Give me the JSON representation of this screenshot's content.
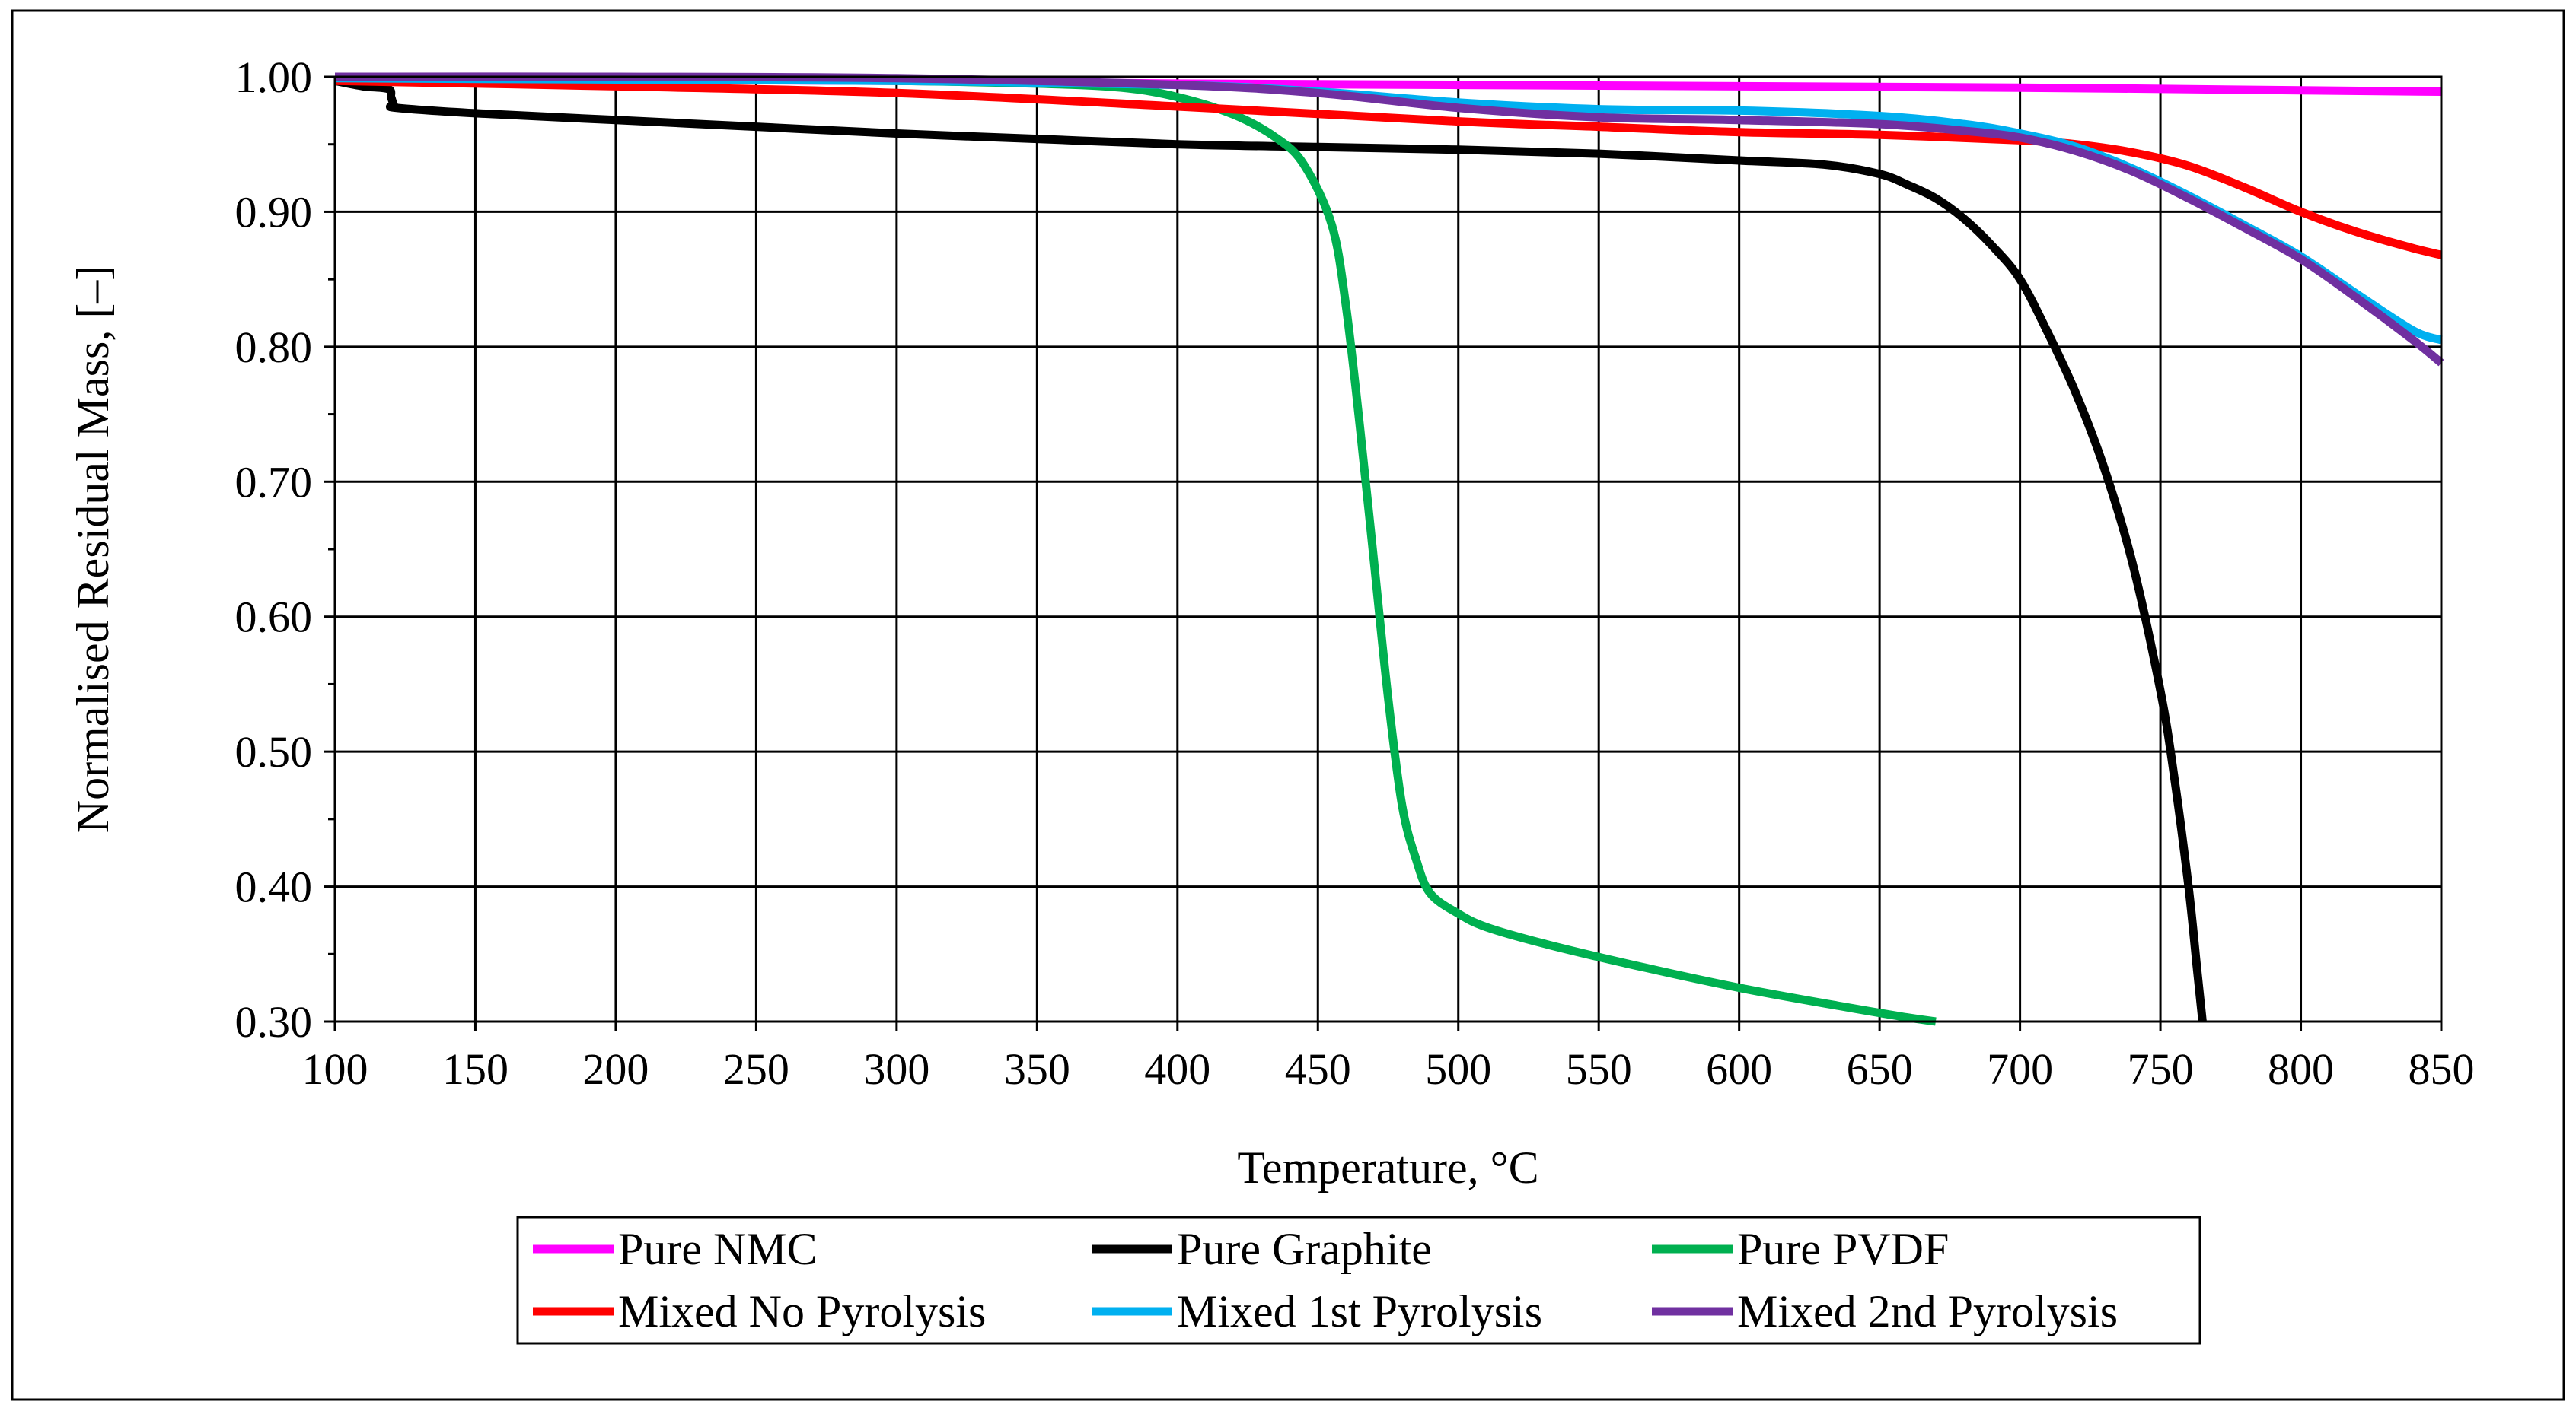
{
  "chart_data": {
    "type": "line",
    "title": "",
    "xlabel": "Temperature, °C",
    "ylabel": "Normalised  Residual Mass, [–]",
    "xlim": [
      100,
      850
    ],
    "ylim": [
      0.3,
      1.0
    ],
    "x_ticks": [
      100,
      150,
      200,
      250,
      300,
      350,
      400,
      450,
      500,
      550,
      600,
      650,
      700,
      750,
      800,
      850
    ],
    "x_tick_labels": [
      "100",
      "150",
      "200",
      "250",
      "300",
      "350",
      "400",
      "450",
      "500",
      "550",
      "600",
      "650",
      "700",
      "750",
      "800",
      "850"
    ],
    "y_ticks": [
      0.3,
      0.4,
      0.5,
      0.6,
      0.7,
      0.8,
      0.9,
      1.0
    ],
    "y_tick_labels": [
      "0.30",
      "0.40",
      "0.50",
      "0.60",
      "0.70",
      "0.80",
      "0.90",
      "1.00"
    ],
    "grid": true,
    "legend_position": "bottom",
    "series": [
      {
        "name": "Pure NMC",
        "color": "#FF00FF",
        "x": [
          100,
          200,
          300,
          400,
          500,
          600,
          700,
          800,
          850
        ],
        "y": [
          0.999,
          0.998,
          0.997,
          0.995,
          0.994,
          0.993,
          0.992,
          0.99,
          0.989
        ]
      },
      {
        "name": "Pure Graphite",
        "color": "#000000",
        "x": [
          100,
          110,
          119,
          120,
          121,
          122,
          150,
          200,
          250,
          300,
          350,
          400,
          450,
          500,
          550,
          600,
          630,
          650,
          660,
          670,
          680,
          690,
          700,
          710,
          720,
          730,
          740,
          750,
          755,
          760,
          763,
          765
        ],
        "y": [
          0.997,
          0.993,
          0.991,
          0.985,
          0.979,
          0.977,
          0.973,
          0.968,
          0.963,
          0.958,
          0.954,
          0.95,
          0.948,
          0.946,
          0.943,
          0.938,
          0.935,
          0.928,
          0.92,
          0.91,
          0.895,
          0.875,
          0.85,
          0.81,
          0.765,
          0.71,
          0.64,
          0.545,
          0.48,
          0.4,
          0.34,
          0.3
        ]
      },
      {
        "name": "Pure PVDF",
        "color": "#00B050",
        "x": [
          100,
          200,
          300,
          350,
          380,
          400,
          420,
          435,
          445,
          455,
          460,
          465,
          470,
          475,
          480,
          485,
          490,
          500,
          510,
          530,
          560,
          600,
          640,
          660,
          670
        ],
        "y": [
          1.0,
          0.999,
          0.997,
          0.995,
          0.992,
          0.985,
          0.972,
          0.955,
          0.935,
          0.89,
          0.83,
          0.74,
          0.64,
          0.54,
          0.46,
          0.42,
          0.395,
          0.38,
          0.37,
          0.358,
          0.343,
          0.325,
          0.31,
          0.303,
          0.3
        ]
      },
      {
        "name": "Mixed No Pyrolysis",
        "color": "#FF0000",
        "x": [
          100,
          200,
          300,
          400,
          500,
          550,
          600,
          650,
          700,
          720,
          740,
          760,
          780,
          800,
          820,
          840,
          850
        ],
        "y": [
          0.997,
          0.993,
          0.988,
          0.978,
          0.967,
          0.963,
          0.959,
          0.957,
          0.953,
          0.95,
          0.944,
          0.934,
          0.918,
          0.9,
          0.885,
          0.873,
          0.868
        ]
      },
      {
        "name": "Mixed 1st Pyrolysis",
        "color": "#00B0F0",
        "x": [
          100,
          200,
          300,
          400,
          450,
          500,
          550,
          600,
          650,
          680,
          700,
          720,
          740,
          760,
          780,
          800,
          820,
          840,
          850
        ],
        "y": [
          0.999,
          0.998,
          0.997,
          0.994,
          0.989,
          0.981,
          0.976,
          0.975,
          0.971,
          0.965,
          0.958,
          0.948,
          0.932,
          0.912,
          0.89,
          0.867,
          0.839,
          0.812,
          0.805
        ]
      },
      {
        "name": "Mixed 2nd Pyrolysis",
        "color": "#7030A0",
        "x": [
          100,
          200,
          300,
          400,
          450,
          500,
          550,
          600,
          650,
          680,
          700,
          720,
          740,
          760,
          780,
          800,
          820,
          840,
          850
        ],
        "y": [
          1.0,
          1.0,
          0.999,
          0.994,
          0.988,
          0.977,
          0.97,
          0.968,
          0.965,
          0.96,
          0.955,
          0.945,
          0.93,
          0.91,
          0.888,
          0.865,
          0.836,
          0.805,
          0.788
        ]
      }
    ]
  }
}
